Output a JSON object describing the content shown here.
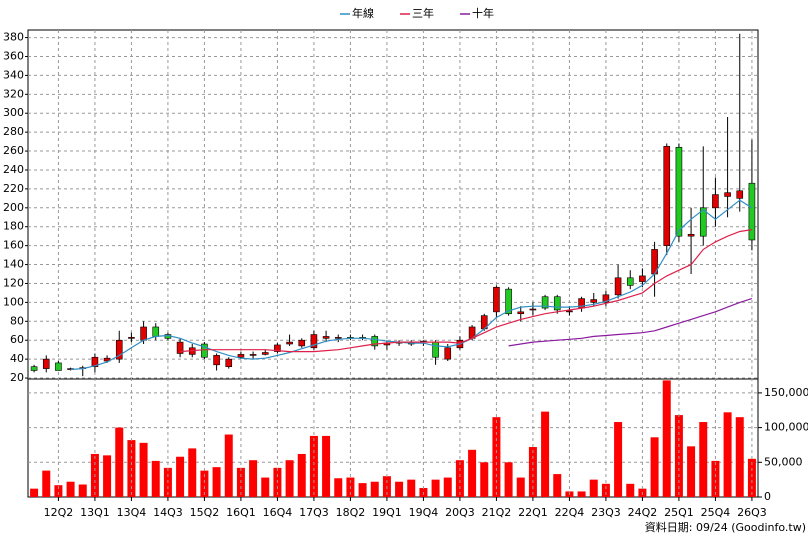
{
  "chart_data": [
    {
      "type": "candlestick",
      "legend": "top",
      "up_color": "#e00000",
      "down_color": "#22c922",
      "open": [
        32,
        30,
        36,
        29,
        30,
        32,
        38,
        40,
        62,
        60,
        74,
        66,
        46,
        45,
        56,
        34,
        32,
        42,
        44,
        45,
        48,
        56,
        54,
        52,
        62,
        62,
        63,
        63,
        64,
        55,
        58,
        58,
        58,
        58,
        40,
        52,
        62,
        72,
        90,
        114,
        88,
        92,
        106,
        106,
        90,
        94,
        100,
        100,
        108,
        126,
        122,
        130,
        160,
        264,
        170,
        200,
        200,
        212,
        210,
        226
      ],
      "high": [
        34,
        44,
        38,
        31,
        33,
        46,
        44,
        70,
        68,
        80,
        78,
        68,
        62,
        56,
        58,
        46,
        42,
        48,
        48,
        50,
        57,
        66,
        62,
        70,
        70,
        66,
        66,
        66,
        66,
        60,
        60,
        60,
        60,
        60,
        56,
        64,
        76,
        88,
        118,
        116,
        96,
        100,
        108,
        108,
        96,
        106,
        110,
        112,
        140,
        134,
        136,
        164,
        268,
        268,
        200,
        265,
        232,
        296,
        384,
        272
      ],
      "low": [
        26,
        26,
        28,
        28,
        22,
        26,
        36,
        36,
        58,
        56,
        60,
        60,
        42,
        42,
        40,
        28,
        30,
        40,
        40,
        44,
        46,
        54,
        52,
        50,
        58,
        58,
        60,
        60,
        50,
        50,
        54,
        54,
        54,
        34,
        38,
        50,
        60,
        70,
        84,
        86,
        80,
        86,
        92,
        88,
        86,
        90,
        96,
        96,
        104,
        114,
        116,
        106,
        150,
        164,
        130,
        160,
        180,
        190,
        196,
        155
      ],
      "close": [
        28,
        40,
        28,
        30,
        31,
        42,
        41,
        60,
        63,
        74,
        64,
        62,
        58,
        52,
        42,
        44,
        40,
        45,
        45,
        47,
        55,
        58,
        60,
        66,
        64,
        63,
        62,
        62,
        54,
        57,
        57,
        56,
        59,
        42,
        52,
        60,
        74,
        86,
        116,
        88,
        90,
        93,
        94,
        92,
        91,
        104,
        103,
        108,
        126,
        118,
        128,
        156,
        265,
        170,
        172,
        170,
        214,
        216,
        218,
        166
      ],
      "series": [
        {
          "name": "年線",
          "color": "#2f8fc4",
          "values": [
            null,
            null,
            null,
            29,
            30,
            33,
            37,
            44,
            52,
            60,
            64,
            65,
            62,
            57,
            53,
            48,
            44,
            41,
            40,
            41,
            44,
            47,
            51,
            55,
            59,
            61,
            62,
            62,
            61,
            59,
            58,
            57,
            57,
            54,
            53,
            56,
            62,
            72,
            84,
            91,
            95,
            96,
            96,
            95,
            95,
            96,
            98,
            101,
            106,
            111,
            118,
            130,
            152,
            176,
            188,
            198,
            188,
            198,
            208,
            200
          ]
        },
        {
          "name": "三年",
          "color": "#e0204a",
          "values": [
            null,
            null,
            null,
            null,
            null,
            null,
            null,
            null,
            null,
            null,
            null,
            null,
            48,
            49,
            50,
            50,
            50,
            50,
            50,
            50,
            49,
            48,
            48,
            48,
            49,
            50,
            52,
            54,
            56,
            57,
            58,
            58,
            58,
            58,
            58,
            57,
            62,
            68,
            74,
            78,
            82,
            85,
            88,
            90,
            92,
            94,
            96,
            99,
            102,
            106,
            110,
            120,
            128,
            134,
            140,
            156,
            164,
            170,
            175,
            177
          ]
        },
        {
          "name": "十年",
          "color": "#8b1a9e",
          "values": [
            null,
            null,
            null,
            null,
            null,
            null,
            null,
            null,
            null,
            null,
            null,
            null,
            null,
            null,
            null,
            null,
            null,
            null,
            null,
            null,
            null,
            null,
            null,
            null,
            null,
            null,
            null,
            null,
            null,
            null,
            null,
            null,
            null,
            null,
            null,
            null,
            null,
            null,
            null,
            54,
            56,
            58,
            59,
            60,
            61,
            62,
            64,
            65,
            66,
            67,
            68,
            70,
            74,
            78,
            82,
            86,
            90,
            95,
            100,
            104
          ]
        }
      ],
      "ylim": [
        19,
        388
      ],
      "yticks": [
        20,
        40,
        60,
        80,
        100,
        120,
        140,
        160,
        180,
        200,
        220,
        240,
        260,
        280,
        300,
        320,
        340,
        360,
        380
      ],
      "grid": true
    },
    {
      "type": "bar",
      "color": "#ff0000",
      "categories": [
        null,
        null,
        "12Q2",
        null,
        null,
        "13Q1",
        null,
        null,
        "13Q4",
        null,
        null,
        "14Q3",
        null,
        null,
        "15Q2",
        null,
        null,
        "16Q1",
        null,
        null,
        "16Q4",
        null,
        null,
        "17Q3",
        null,
        null,
        "18Q2",
        null,
        null,
        "19Q1",
        null,
        null,
        "19Q4",
        null,
        null,
        "20Q3",
        null,
        null,
        "21Q2",
        null,
        null,
        "22Q1",
        null,
        null,
        "22Q4",
        null,
        null,
        "23Q3",
        null,
        null,
        "24Q2",
        null,
        null,
        "25Q1",
        null,
        null,
        "25Q4",
        null,
        null,
        "26Q3"
      ],
      "values": [
        12000,
        38000,
        17000,
        22000,
        18000,
        62000,
        60000,
        100000,
        82000,
        78000,
        52000,
        42000,
        58000,
        70000,
        38000,
        43000,
        90000,
        42000,
        53000,
        28000,
        42000,
        53000,
        62000,
        88000,
        88000,
        27000,
        28000,
        20000,
        22000,
        30000,
        22000,
        25000,
        13000,
        25000,
        28000,
        53000,
        68000,
        50000,
        115000,
        50000,
        28000,
        72000,
        123000,
        33000,
        8000,
        8000,
        25000,
        19000,
        108000,
        19000,
        12000,
        86000,
        168000,
        118000,
        73000,
        108000,
        52000,
        122000,
        115000,
        55000
      ],
      "ylim": [
        0,
        170000
      ],
      "yticks": [
        0,
        {
          "value": 50000,
          "label": "50,000"
        },
        {
          "value": 100000,
          "label": "100,000"
        },
        {
          "value": 150000,
          "label": "150,000"
        }
      ],
      "grid": true,
      "footnote": "資料日期: 09/24 (Goodinfo.tw)"
    }
  ]
}
